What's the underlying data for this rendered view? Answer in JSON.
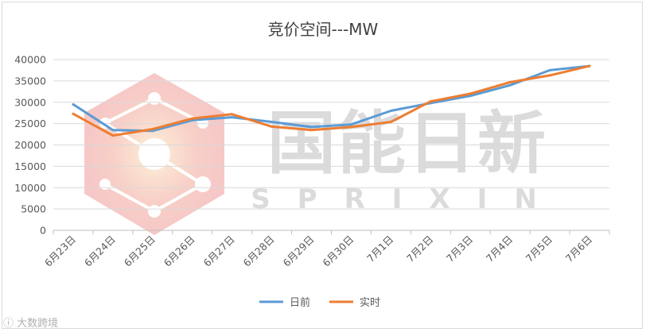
{
  "chart_data": {
    "type": "line",
    "title": "竞价空间---MW",
    "categories": [
      "6月23日",
      "6月24日",
      "6月25日",
      "6月26日",
      "6月27日",
      "6月28日",
      "6月29日",
      "6月30日",
      "7月1日",
      "7月2日",
      "7月3日",
      "7月4日",
      "7月5日",
      "7月6日"
    ],
    "ylim": [
      0,
      40000
    ],
    "yticks": [
      0,
      5000,
      10000,
      15000,
      20000,
      25000,
      30000,
      35000,
      40000
    ],
    "grid": true,
    "legend_position": "bottom",
    "series": [
      {
        "name": "日前",
        "color": "#5b9bd5",
        "values": [
          29500,
          23500,
          23300,
          25800,
          26500,
          25400,
          24200,
          24800,
          28000,
          29800,
          31500,
          34000,
          37500,
          38500
        ]
      },
      {
        "name": "实时",
        "color": "#ed7d31",
        "values": [
          27300,
          22200,
          23700,
          26200,
          27200,
          24300,
          23500,
          24200,
          25400,
          30200,
          32000,
          34700,
          36300,
          38500
        ]
      }
    ]
  },
  "watermark": {
    "brand": "国能日新",
    "brand_en": "SPRIXIN"
  },
  "corner_mark": "大数跨境"
}
